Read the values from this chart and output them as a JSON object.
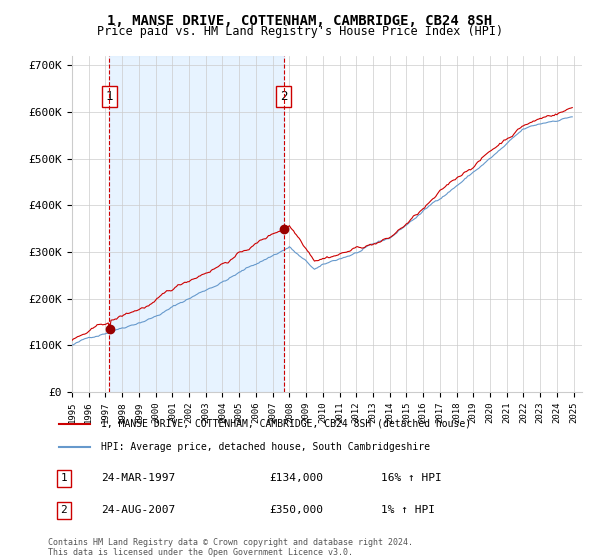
{
  "title": "1, MANSE DRIVE, COTTENHAM, CAMBRIDGE, CB24 8SH",
  "subtitle": "Price paid vs. HM Land Registry's House Price Index (HPI)",
  "legend_line1": "1, MANSE DRIVE, COTTENHAM, CAMBRIDGE, CB24 8SH (detached house)",
  "legend_line2": "HPI: Average price, detached house, South Cambridgeshire",
  "sale1_date": "24-MAR-1997",
  "sale1_price": 134000,
  "sale1_label": "16% ↑ HPI",
  "sale2_date": "24-AUG-2007",
  "sale2_price": 350000,
  "sale2_label": "1% ↑ HPI",
  "footer": "Contains HM Land Registry data © Crown copyright and database right 2024.\nThis data is licensed under the Open Government Licence v3.0.",
  "hpi_color": "#6699cc",
  "price_color": "#cc0000",
  "marker_color": "#990000",
  "vline_color": "#cc0000",
  "bg_shaded_color": "#ddeeff",
  "grid_color": "#cccccc",
  "ylim": [
    0,
    720000
  ],
  "yticks": [
    0,
    100000,
    200000,
    300000,
    400000,
    500000,
    600000,
    700000
  ],
  "ytick_labels": [
    "£0",
    "£100K",
    "£200K",
    "£300K",
    "£400K",
    "£500K",
    "£600K",
    "£700K"
  ]
}
